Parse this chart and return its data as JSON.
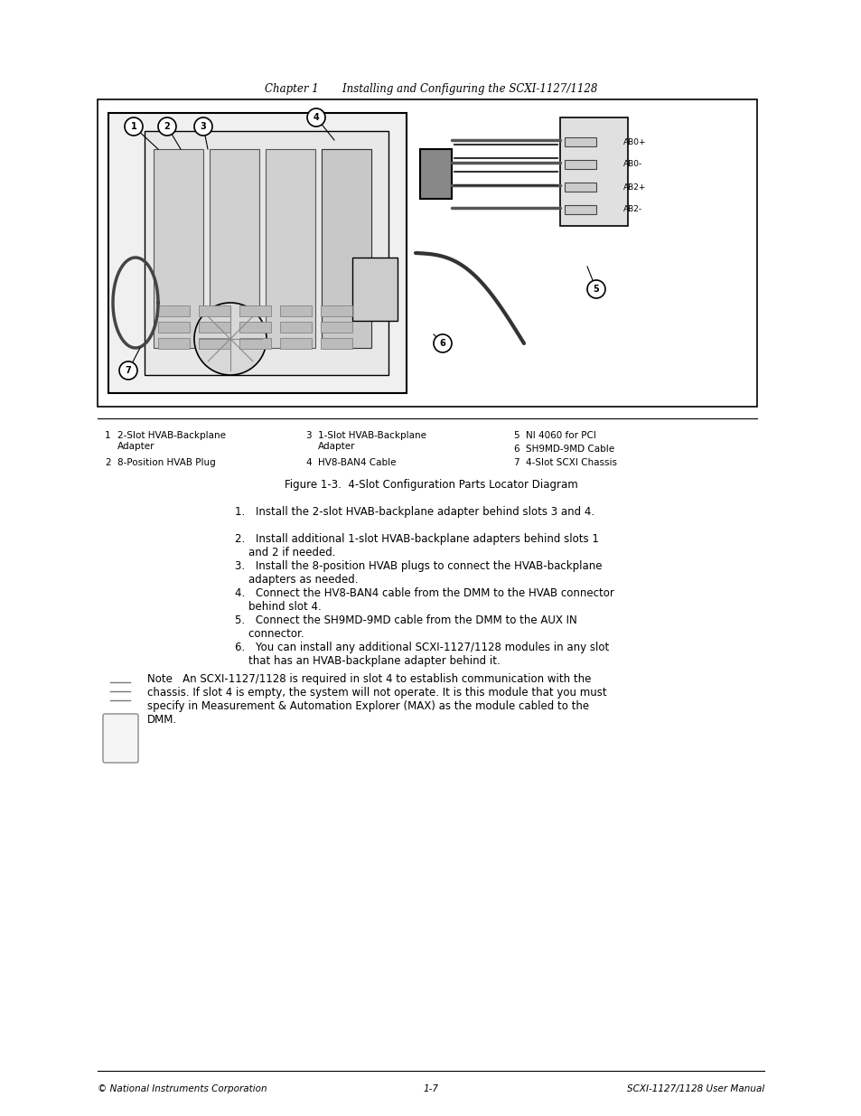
{
  "page_header": "Chapter 1       Installing and Configuring the SCXI-1127/1128",
  "figure_caption": "Figure 1-3.  4-Slot Configuration Parts Locator Diagram",
  "legend_items": [
    {
      "num": "1",
      "text": "2-Slot HVAB-Backplane\nAdapter"
    },
    {
      "num": "2",
      "text": "8-Position HVAB Plug"
    },
    {
      "num": "3",
      "text": "1-Slot HVAB-Backplane\nAdapter"
    },
    {
      "num": "4",
      "text": "HV8-BAN4 Cable"
    },
    {
      "num": "5",
      "text": "NI 4060 for PCI"
    },
    {
      "num": "6",
      "text": "SH9MD-9MD Cable"
    },
    {
      "num": "7",
      "text": "4-Slot SCXI Chassis"
    }
  ],
  "steps": [
    "1. Install the 2-slot HVAB-backplane adapter behind slots 3 and 4.",
    "2. Install additional 1-slot HVAB-backplane adapters behind slots 1\n    and 2 if needed.",
    "3. Install the 8-position HVAB plugs to connect the HVAB-backplane\n    adapters as needed.",
    "4. Connect the HV8-BAN4 cable from the DMM to the HVAB connector\n    behind slot 4.",
    "5. Connect the SH9MD-9MD cable from the DMM to the AUX IN\n    connector.",
    "6. You can install any additional SCXI-1127/1128 modules in any slot\n    that has an HVAB-backplane adapter behind it."
  ],
  "note_text": "Note   An SCXI-1127/1128 is required in slot 4 to establish communication with the\nchassis. If slot 4 is empty, the system will not operate. It is this module that you must\nspecify in Measurement & Automation Explorer (MAX) as the module cabled to the\nDMM.",
  "footer_left": "© National Instruments Corporation",
  "footer_center": "1-7",
  "footer_right": "SCXI-1127/1128 User Manual",
  "bg_color": "#ffffff",
  "text_color": "#000000",
  "diagram_border_color": "#000000",
  "connector_labels": [
    "AB0+",
    "AB0-",
    "AB2+",
    "AB2-"
  ]
}
